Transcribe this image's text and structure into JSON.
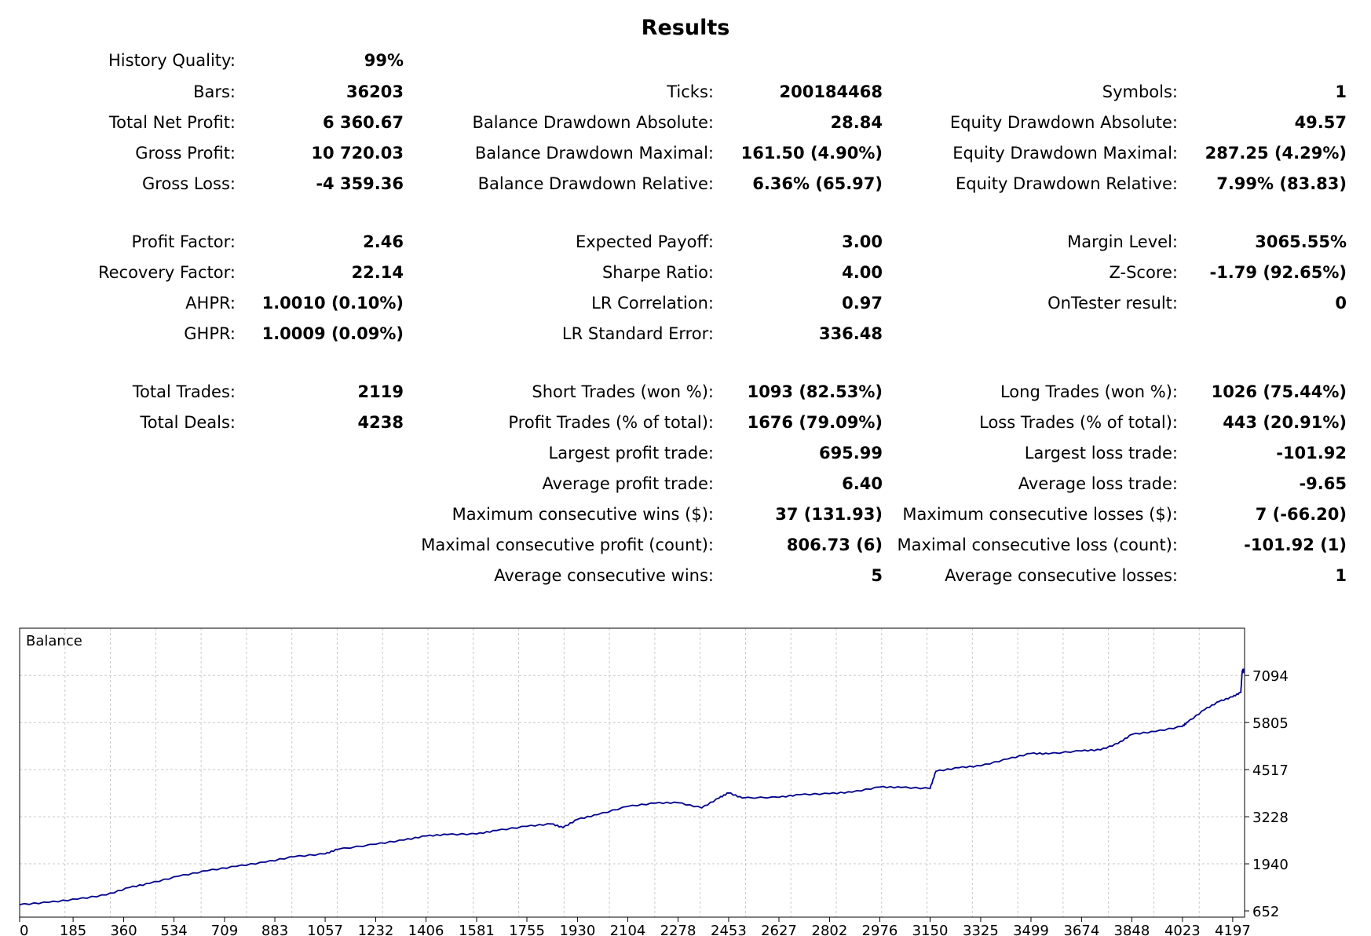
{
  "title": "Results",
  "rows": [
    {
      "top": 65,
      "cells": [
        [
          "History Quality:",
          "99%"
        ],
        null,
        null
      ]
    },
    {
      "top": 105,
      "cells": [
        [
          "Bars:",
          "36203"
        ],
        [
          "Ticks:",
          "200184468"
        ],
        [
          "Symbols:",
          "1"
        ]
      ]
    },
    {
      "top": 144,
      "cells": [
        [
          "Total Net Profit:",
          "6 360.67"
        ],
        [
          "Balance Drawdown Absolute:",
          "28.84"
        ],
        [
          "Equity Drawdown Absolute:",
          "49.57"
        ]
      ]
    },
    {
      "top": 183,
      "cells": [
        [
          "Gross Profit:",
          "10 720.03"
        ],
        [
          "Balance Drawdown Maximal:",
          "161.50 (4.90%)"
        ],
        [
          "Equity Drawdown Maximal:",
          "287.25 (4.29%)"
        ]
      ]
    },
    {
      "top": 222,
      "cells": [
        [
          "Gross Loss:",
          "-4 359.36"
        ],
        [
          "Balance Drawdown Relative:",
          "6.36% (65.97)"
        ],
        [
          "Equity Drawdown Relative:",
          "7.99% (83.83)"
        ]
      ]
    },
    {
      "top": 296,
      "cells": [
        [
          "Profit Factor:",
          "2.46"
        ],
        [
          "Expected Payoff:",
          "3.00"
        ],
        [
          "Margin Level:",
          "3065.55%"
        ]
      ]
    },
    {
      "top": 335,
      "cells": [
        [
          "Recovery Factor:",
          "22.14"
        ],
        [
          "Sharpe Ratio:",
          "4.00"
        ],
        [
          "Z-Score:",
          "-1.79 (92.65%)"
        ]
      ]
    },
    {
      "top": 374,
      "cells": [
        [
          "AHPR:",
          "1.0010 (0.10%)"
        ],
        [
          "LR Correlation:",
          "0.97"
        ],
        [
          "OnTester result:",
          "0"
        ]
      ]
    },
    {
      "top": 413,
      "cells": [
        [
          "GHPR:",
          "1.0009 (0.09%)"
        ],
        [
          "LR Standard Error:",
          "336.48"
        ],
        null
      ]
    },
    {
      "top": 487,
      "cells": [
        [
          "Total Trades:",
          "2119"
        ],
        [
          "Short Trades (won %):",
          "1093 (82.53%)"
        ],
        [
          "Long Trades (won %):",
          "1026 (75.44%)"
        ]
      ]
    },
    {
      "top": 526,
      "cells": [
        [
          "Total Deals:",
          "4238"
        ],
        [
          "Profit Trades (% of total):",
          "1676 (79.09%)"
        ],
        [
          "Loss Trades (% of total):",
          "443 (20.91%)"
        ]
      ]
    },
    {
      "top": 565,
      "cells": [
        null,
        [
          "Largest profit trade:",
          "695.99"
        ],
        [
          "Largest loss trade:",
          "-101.92"
        ]
      ]
    },
    {
      "top": 604,
      "cells": [
        null,
        [
          "Average profit trade:",
          "6.40"
        ],
        [
          "Average loss trade:",
          "-9.65"
        ]
      ]
    },
    {
      "top": 643,
      "cells": [
        null,
        [
          "Maximum consecutive wins ($):",
          "37 (131.93)"
        ],
        [
          "Maximum consecutive losses ($):",
          "7 (-66.20)"
        ]
      ]
    },
    {
      "top": 682,
      "cells": [
        null,
        [
          "Maximal consecutive profit (count):",
          "806.73 (6)"
        ],
        [
          "Maximal consecutive loss (count):",
          "-101.92 (1)"
        ]
      ]
    },
    {
      "top": 721,
      "cells": [
        null,
        [
          "Average consecutive wins:",
          "5"
        ],
        [
          "Average consecutive losses:",
          "1"
        ]
      ]
    }
  ],
  "chart_data": {
    "type": "line",
    "title": "Balance",
    "xlabel": "",
    "ylabel": "",
    "x_ticks": [
      0,
      185,
      360,
      534,
      709,
      883,
      1057,
      1232,
      1406,
      1581,
      1755,
      1930,
      2104,
      2278,
      2453,
      2627,
      2802,
      2976,
      3150,
      3325,
      3499,
      3674,
      3848,
      4023,
      4197
    ],
    "y_ticks": [
      652,
      1940,
      3228,
      4517,
      5805,
      7094
    ],
    "xlim": [
      0,
      4238
    ],
    "ylim": [
      652,
      7700
    ],
    "grid": true,
    "line_color": "#00008b",
    "series": [
      {
        "x": [
          0,
          100,
          200,
          300,
          380,
          450,
          550,
          650,
          750,
          850,
          950,
          1057,
          1100,
          1232,
          1330,
          1406,
          1480,
          1581,
          1650,
          1755,
          1840,
          1880,
          1930,
          2000,
          2104,
          2200,
          2278,
          2360,
          2420,
          2453,
          2500,
          2627,
          2700,
          2802,
          2880,
          2976,
          3050,
          3150,
          3170,
          3250,
          3325,
          3420,
          3499,
          3560,
          3674,
          3740,
          3800,
          3848,
          3930,
          4023,
          4040,
          4100,
          4150,
          4197,
          4225,
          4230,
          4238
        ],
        "y": [
          822,
          884,
          973,
          1089,
          1290,
          1403,
          1600,
          1750,
          1870,
          1985,
          2135,
          2210,
          2335,
          2475,
          2590,
          2700,
          2740,
          2755,
          2850,
          2965,
          3030,
          2930,
          3155,
          3285,
          3510,
          3600,
          3610,
          3470,
          3740,
          3880,
          3740,
          3760,
          3830,
          3860,
          3900,
          4040,
          4030,
          4000,
          4470,
          4570,
          4620,
          4810,
          4960,
          4950,
          5030,
          5060,
          5230,
          5480,
          5560,
          5700,
          5810,
          6160,
          6380,
          6510,
          6630,
          7220,
          7220
        ]
      }
    ]
  }
}
